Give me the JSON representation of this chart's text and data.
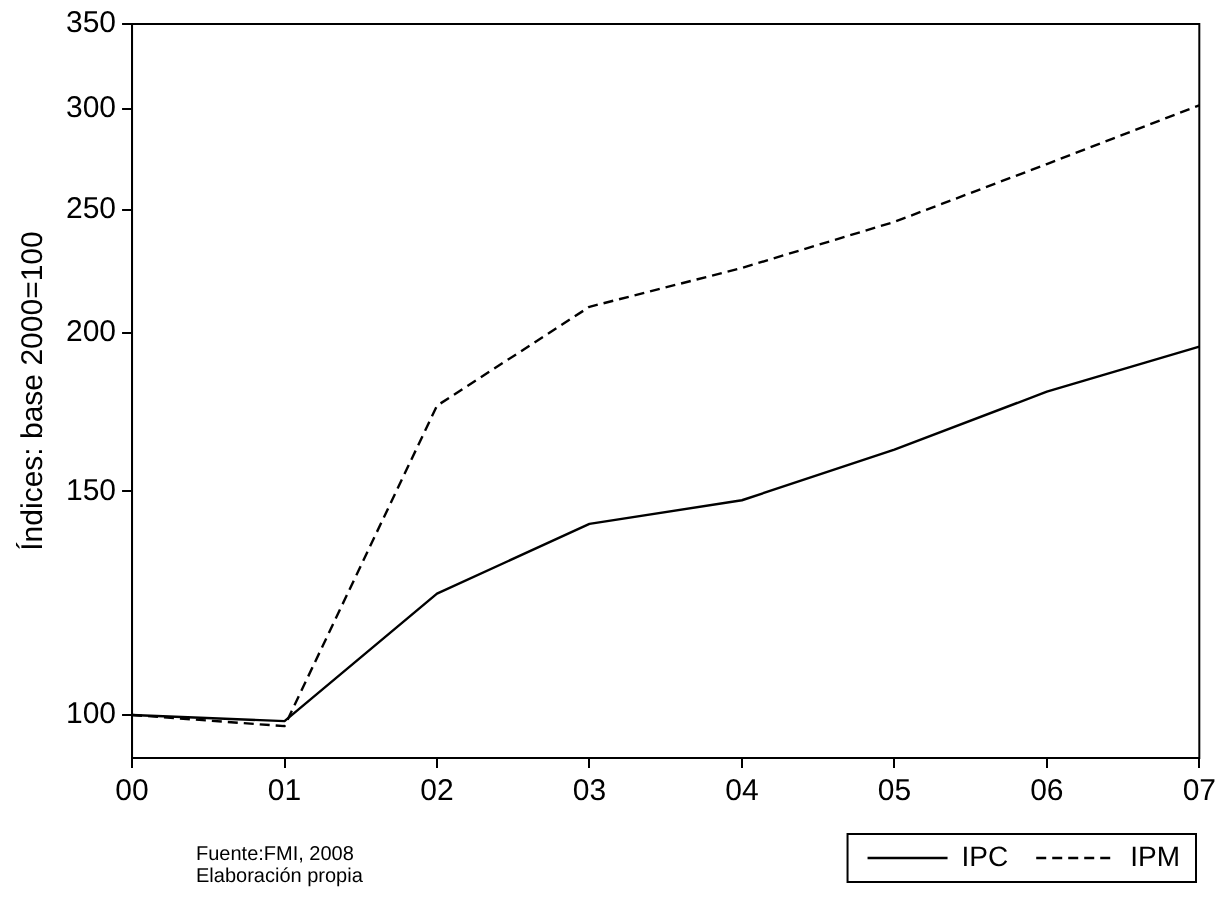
{
  "chart_data": {
    "type": "line",
    "ylabel": "Índices: base 2000=100",
    "categories": [
      "00",
      "01",
      "02",
      "03",
      "04",
      "05",
      "06",
      "07"
    ],
    "series": [
      {
        "name": "IPC",
        "color": "#000000",
        "line_style": "solid",
        "values": [
          100,
          98.9,
          124.6,
          141.4,
          147.6,
          161.8,
          179.7,
          195
        ]
      },
      {
        "name": "IPM",
        "color": "#000000",
        "line_style": "dashed",
        "values": [
          100,
          98,
          175.2,
          209.6,
          224.9,
          244.5,
          271.5,
          302
        ]
      }
    ],
    "log": "y",
    "ylim": [
      92.5,
      350
    ],
    "yticks": [
      100,
      150,
      200,
      250,
      300,
      350
    ],
    "grid": false,
    "legend": "bottom right",
    "marker": "none",
    "annotations": [
      "Fuente:FMI, 2008",
      "Elaboración propia"
    ]
  }
}
